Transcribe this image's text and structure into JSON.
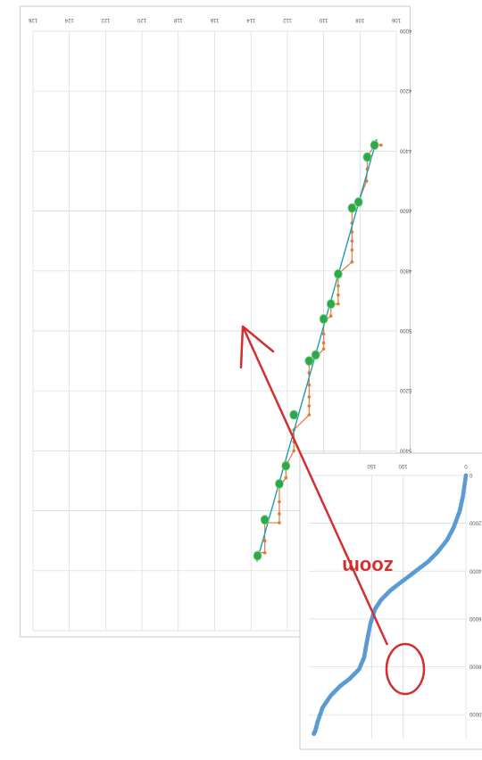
{
  "annotation": {
    "label": "zoom",
    "color": "#d32f2f"
  },
  "colors": {
    "step_line": "#e07b39",
    "step_points": "#e07b39",
    "fit_line": "#1f9bb0",
    "highlight": "#2ea84d",
    "inset_points": "#5b9bd5",
    "grid": "#d9d9d9"
  },
  "chart_data": [
    {
      "type": "line",
      "orientation": "rotated 180 degrees",
      "title": "",
      "xlabel": "",
      "ylabel": "",
      "xlim": [
        106,
        156
      ],
      "ylim": [
        4000,
        6000
      ],
      "x_tick_labels": [
        "106",
        "108",
        "110",
        "112",
        "114",
        "116",
        "118",
        "120",
        "122",
        "124",
        "126"
      ],
      "y_tick_labels": [
        "4000",
        "4200",
        "4400",
        "4600",
        "4800",
        "5000",
        "5200",
        "5400",
        "5600",
        "5800",
        "6000"
      ],
      "grid": true,
      "series": [
        {
          "values_note": "stepped data",
          "points": [
            [
              108.1,
              4380
            ],
            [
              109.0,
              4380
            ],
            [
              110.0,
              4420
            ],
            [
              110.0,
              4460
            ],
            [
              110.1,
              4500
            ],
            [
              111.2,
              4570
            ],
            [
              112.1,
              4580
            ],
            [
              112.1,
              4640
            ],
            [
              112.1,
              4670
            ],
            [
              112.1,
              4700
            ],
            [
              112.1,
              4730
            ],
            [
              112.1,
              4770
            ],
            [
              114.0,
              4810
            ],
            [
              114.0,
              4850
            ],
            [
              114.0,
              4880
            ],
            [
              114.0,
              4910
            ],
            [
              115.0,
              4910
            ],
            [
              115.0,
              4950
            ],
            [
              116.0,
              4970
            ],
            [
              116.0,
              5010
            ],
            [
              116.0,
              5040
            ],
            [
              116.0,
              5060
            ],
            [
              117.1,
              5090
            ],
            [
              118.0,
              5100
            ],
            [
              118.0,
              5140
            ],
            [
              118.0,
              5180
            ],
            [
              118.0,
              5220
            ],
            [
              118.0,
              5250
            ],
            [
              118.0,
              5280
            ],
            [
              120.1,
              5330
            ],
            [
              120.1,
              5370
            ],
            [
              120.1,
              5400
            ],
            [
              121.2,
              5450
            ],
            [
              121.2,
              5490
            ],
            [
              122.1,
              5520
            ],
            [
              122.1,
              5570
            ],
            [
              122.1,
              5610
            ],
            [
              122.1,
              5640
            ],
            [
              124.1,
              5640
            ],
            [
              124.1,
              5700
            ],
            [
              124.1,
              5740
            ],
            [
              125.1,
              5740
            ]
          ]
        },
        {
          "values_note": "linear fit",
          "points": [
            [
              108.7,
              4360
            ],
            [
              125.2,
              5770
            ]
          ]
        },
        {
          "values_note": "highlighted points",
          "points": [
            [
              109.0,
              4380
            ],
            [
              110.0,
              4420
            ],
            [
              111.2,
              4570
            ],
            [
              112.1,
              4590
            ],
            [
              114.0,
              4810
            ],
            [
              115.0,
              4910
            ],
            [
              116.0,
              4960
            ],
            [
              117.1,
              5080
            ],
            [
              118.0,
              5100
            ],
            [
              120.1,
              5280
            ],
            [
              121.2,
              5450
            ],
            [
              122.1,
              5510
            ],
            [
              124.1,
              5630
            ],
            [
              125.1,
              5750
            ]
          ]
        }
      ]
    },
    {
      "type": "scatter",
      "orientation": "rotated 180 degrees",
      "title": "",
      "x_tick_labels": [
        "0",
        "100",
        "150"
      ],
      "y_tick_labels": [
        "0",
        "2000",
        "4000",
        "6000",
        "8000",
        "10000"
      ],
      "xlim": [
        0,
        250
      ],
      "ylim": [
        0,
        11000
      ],
      "grid": true,
      "series": [
        {
          "values_note": "inset scatter curve",
          "points": [
            [
              0,
              0
            ],
            [
              5,
              900
            ],
            [
              10,
              1500
            ],
            [
              20,
              2200
            ],
            [
              30,
              2700
            ],
            [
              45,
              3200
            ],
            [
              60,
              3600
            ],
            [
              80,
              4000
            ],
            [
              100,
              4400
            ],
            [
              120,
              4800
            ],
            [
              135,
              5200
            ],
            [
              145,
              5600
            ],
            [
              152,
              6200
            ],
            [
              158,
              7000
            ],
            [
              162,
              7600
            ],
            [
              170,
              8100
            ],
            [
              185,
              8500
            ],
            [
              200,
              8800
            ],
            [
              215,
              9200
            ],
            [
              228,
              9700
            ],
            [
              236,
              10300
            ],
            [
              240,
              10700
            ],
            [
              242,
              10800
            ]
          ]
        }
      ]
    }
  ]
}
